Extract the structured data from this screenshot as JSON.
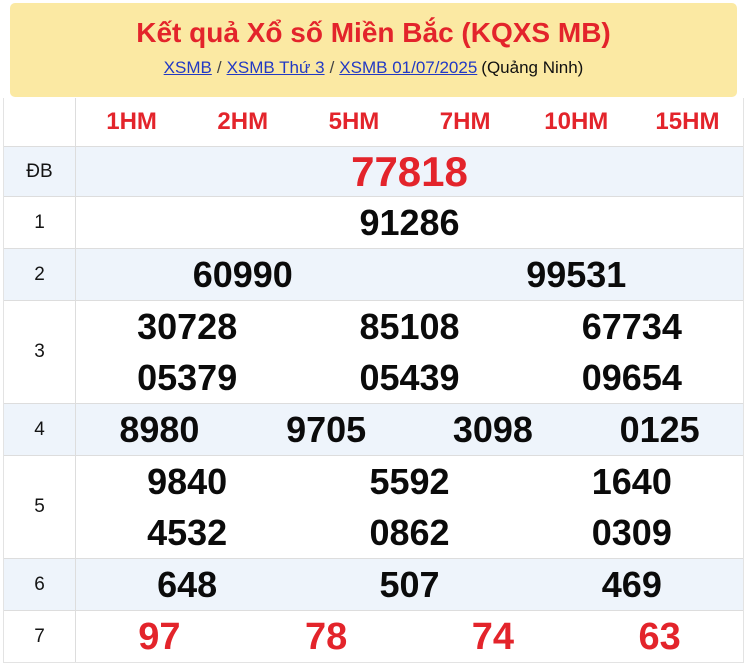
{
  "banner": {
    "title": "Kết quả Xổ số Miền Bắc (KQXS MB)",
    "breadcrumb": {
      "links": [
        "XSMB",
        "XSMB Thứ 3",
        "XSMB 01/07/2025"
      ],
      "separator": "/",
      "location": "(Quảng Ninh)"
    }
  },
  "table": {
    "column_headers": [
      "1HM",
      "2HM",
      "5HM",
      "7HM",
      "10HM",
      "15HM"
    ],
    "rows": [
      {
        "label": "ĐB",
        "lines": [
          [
            "77818"
          ]
        ]
      },
      {
        "label": "1",
        "lines": [
          [
            "91286"
          ]
        ]
      },
      {
        "label": "2",
        "lines": [
          [
            "60990",
            "99531"
          ]
        ]
      },
      {
        "label": "3",
        "lines": [
          [
            "30728",
            "85108",
            "67734"
          ],
          [
            "05379",
            "05439",
            "09654"
          ]
        ]
      },
      {
        "label": "4",
        "lines": [
          [
            "8980",
            "9705",
            "3098",
            "0125"
          ]
        ]
      },
      {
        "label": "5",
        "lines": [
          [
            "9840",
            "5592",
            "1640"
          ],
          [
            "4532",
            "0862",
            "0309"
          ]
        ]
      },
      {
        "label": "6",
        "lines": [
          [
            "648",
            "507",
            "469"
          ]
        ]
      },
      {
        "label": "7",
        "lines": [
          [
            "97",
            "78",
            "74",
            "63"
          ]
        ]
      }
    ]
  },
  "colors": {
    "banner_bg": "#FBE9A3",
    "accent_red": "#E3242B",
    "link_blue": "#2239C4",
    "shaded_row_bg": "#EEF4FB",
    "border": "#DDDDDD"
  }
}
